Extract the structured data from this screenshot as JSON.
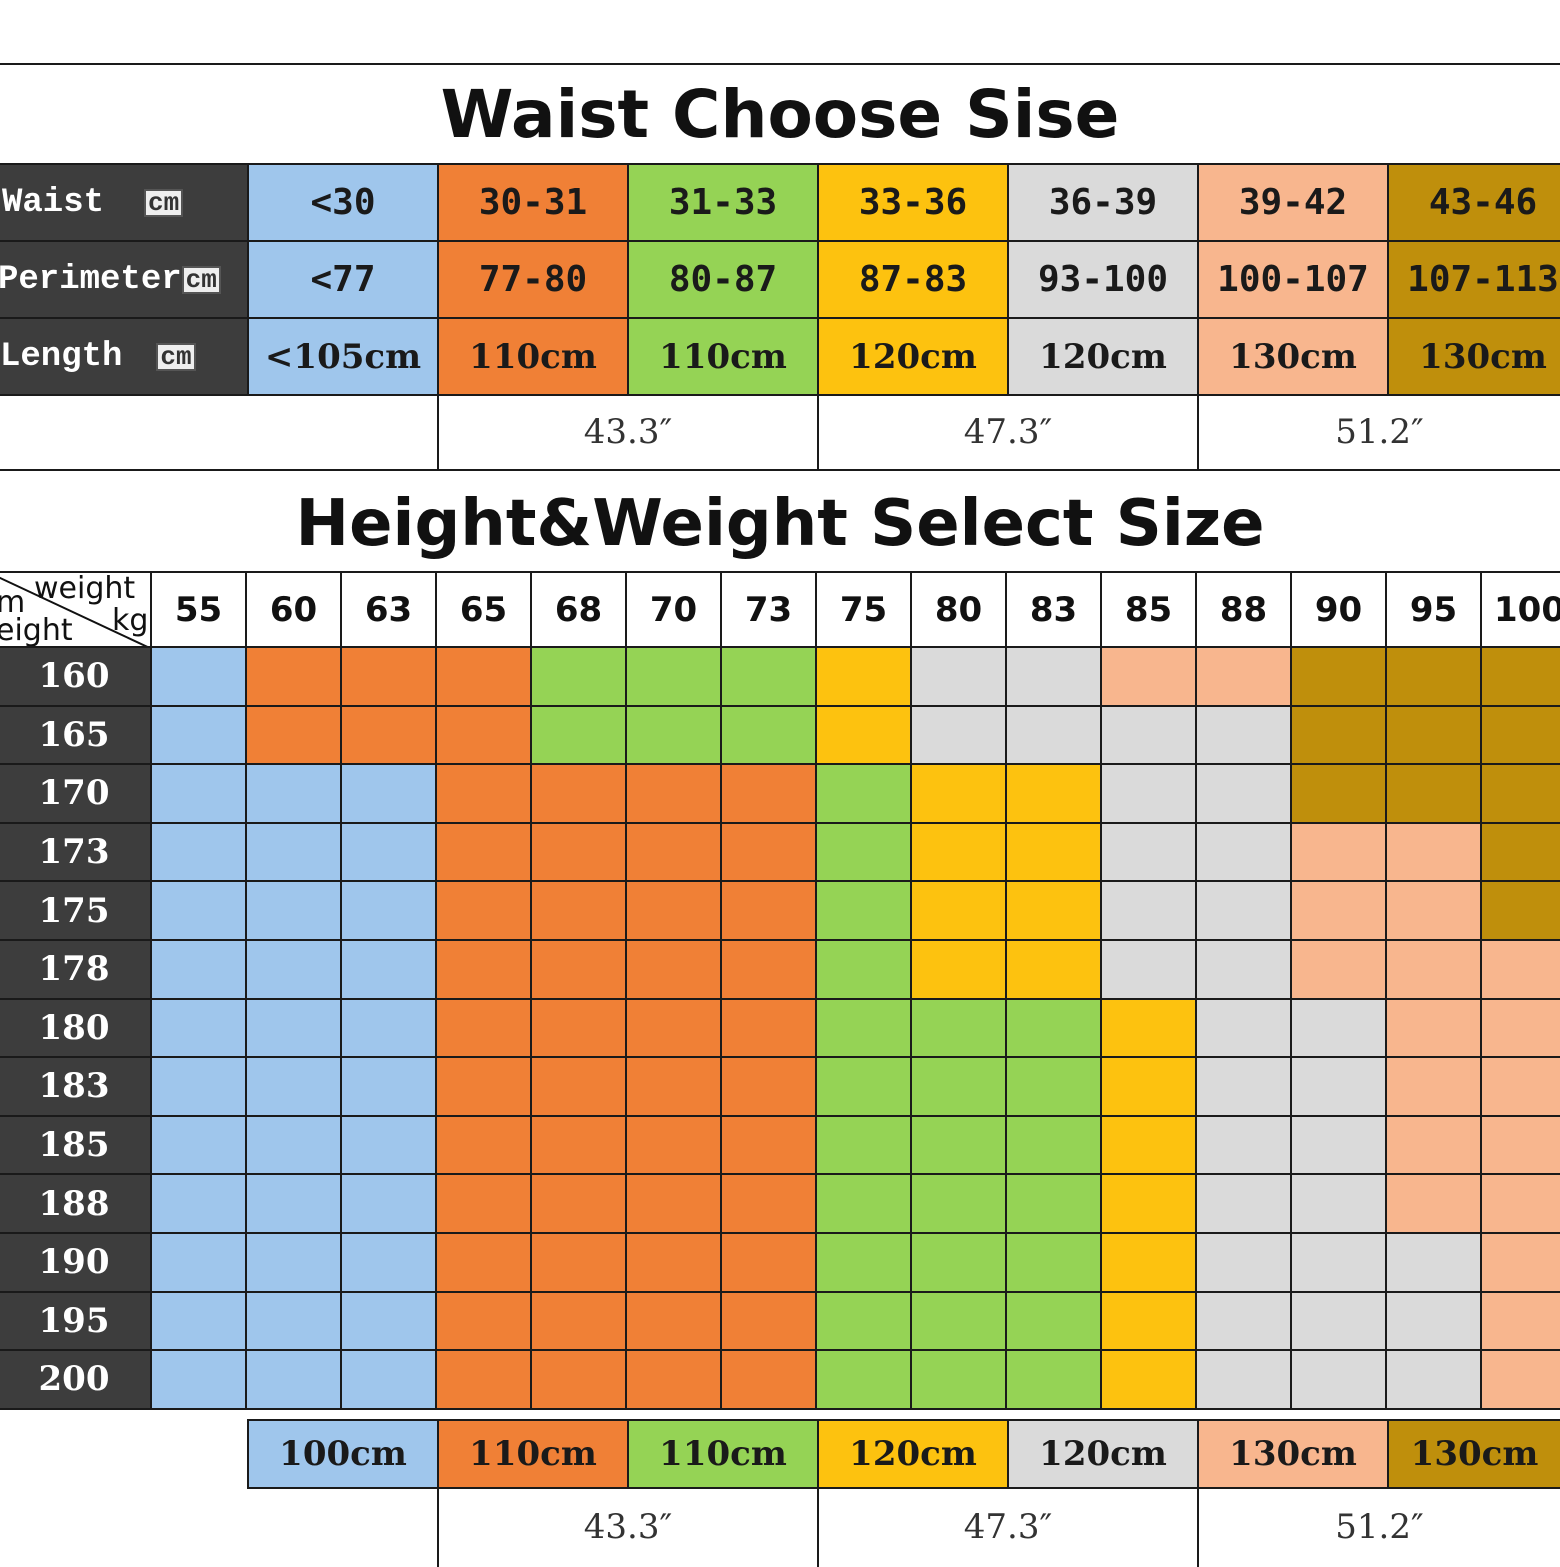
{
  "palette": {
    "blue": "#9fc6ec",
    "orange": "#f08036",
    "green": "#95d355",
    "yellow": "#fdc20f",
    "grey": "#dadada",
    "peach": "#f8b68e",
    "gold": "#bf8f0c"
  },
  "waist_section": {
    "title": "Waist Choose Sise",
    "column_colors": [
      "blue",
      "orange",
      "green",
      "yellow",
      "grey",
      "peach",
      "gold"
    ],
    "rows": [
      {
        "label": "Waist",
        "unit": "cm",
        "values": [
          "<30",
          "30-31",
          "31-33",
          "33-36",
          "36-39",
          "39-42",
          "43-46"
        ]
      },
      {
        "label": "Perimeter",
        "unit": "cm",
        "values": [
          "<77",
          "77-80",
          "80-87",
          "87-83",
          "93-100",
          "100-107",
          "107-113"
        ]
      },
      {
        "label": "Length",
        "unit": "cm",
        "values": [
          "<105cm",
          "110cm",
          "110cm",
          "120cm",
          "120cm",
          "130cm",
          "130cm"
        ]
      }
    ],
    "inches": [
      "43.3″",
      "47.3″",
      "51.2″"
    ]
  },
  "height_weight_section": {
    "title": "Height&Weight Select Size",
    "corner_top": "weight",
    "corner_unit": "kg",
    "corner_left_top": "m",
    "corner_left_bottom": "eight",
    "weights": [
      "55",
      "60",
      "63",
      "65",
      "68",
      "70",
      "73",
      "75",
      "80",
      "83",
      "85",
      "88",
      "90",
      "95",
      "100"
    ],
    "heights": [
      "160",
      "165",
      "170",
      "173",
      "175",
      "178",
      "180",
      "183",
      "185",
      "188",
      "190",
      "195",
      "200"
    ],
    "grid": [
      [
        "blue",
        "orange",
        "orange",
        "orange",
        "green",
        "green",
        "green",
        "yellow",
        "grey",
        "grey",
        "peach",
        "peach",
        "gold",
        "gold",
        "gold"
      ],
      [
        "blue",
        "orange",
        "orange",
        "orange",
        "green",
        "green",
        "green",
        "yellow",
        "grey",
        "grey",
        "grey",
        "grey",
        "gold",
        "gold",
        "gold"
      ],
      [
        "blue",
        "blue",
        "blue",
        "orange",
        "orange",
        "orange",
        "orange",
        "green",
        "yellow",
        "yellow",
        "grey",
        "grey",
        "gold",
        "gold",
        "gold"
      ],
      [
        "blue",
        "blue",
        "blue",
        "orange",
        "orange",
        "orange",
        "orange",
        "green",
        "yellow",
        "yellow",
        "grey",
        "grey",
        "peach",
        "peach",
        "gold"
      ],
      [
        "blue",
        "blue",
        "blue",
        "orange",
        "orange",
        "orange",
        "orange",
        "green",
        "yellow",
        "yellow",
        "grey",
        "grey",
        "peach",
        "peach",
        "gold"
      ],
      [
        "blue",
        "blue",
        "blue",
        "orange",
        "orange",
        "orange",
        "orange",
        "green",
        "yellow",
        "yellow",
        "grey",
        "grey",
        "peach",
        "peach",
        "peach"
      ],
      [
        "blue",
        "blue",
        "blue",
        "orange",
        "orange",
        "orange",
        "orange",
        "green",
        "green",
        "green",
        "yellow",
        "grey",
        "grey",
        "peach",
        "peach"
      ],
      [
        "blue",
        "blue",
        "blue",
        "orange",
        "orange",
        "orange",
        "orange",
        "green",
        "green",
        "green",
        "yellow",
        "grey",
        "grey",
        "peach",
        "peach"
      ],
      [
        "blue",
        "blue",
        "blue",
        "orange",
        "orange",
        "orange",
        "orange",
        "green",
        "green",
        "green",
        "yellow",
        "grey",
        "grey",
        "peach",
        "peach"
      ],
      [
        "blue",
        "blue",
        "blue",
        "orange",
        "orange",
        "orange",
        "orange",
        "green",
        "green",
        "green",
        "yellow",
        "grey",
        "grey",
        "peach",
        "peach"
      ],
      [
        "blue",
        "blue",
        "blue",
        "orange",
        "orange",
        "orange",
        "orange",
        "green",
        "green",
        "green",
        "yellow",
        "grey",
        "grey",
        "grey",
        "peach"
      ],
      [
        "blue",
        "blue",
        "blue",
        "orange",
        "orange",
        "orange",
        "orange",
        "green",
        "green",
        "green",
        "yellow",
        "grey",
        "grey",
        "grey",
        "peach"
      ],
      [
        "blue",
        "blue",
        "blue",
        "orange",
        "orange",
        "orange",
        "orange",
        "green",
        "green",
        "green",
        "yellow",
        "grey",
        "grey",
        "grey",
        "peach"
      ]
    ],
    "length_row": [
      "100cm",
      "110cm",
      "110cm",
      "120cm",
      "120cm",
      "130cm",
      "130cm"
    ],
    "inches": [
      "43.3″",
      "47.3″",
      "51.2″"
    ]
  }
}
